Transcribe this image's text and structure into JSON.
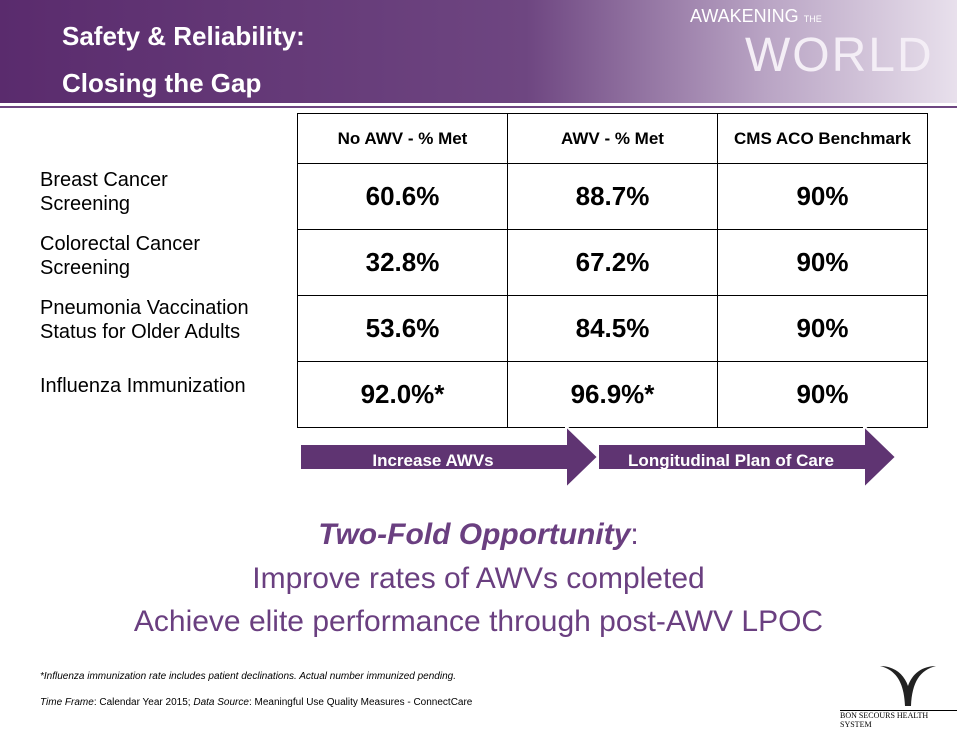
{
  "header": {
    "title": [
      "Safety & Reliability:",
      "Closing the Gap"
    ],
    "logo": {
      "line1": "AWAKENING",
      "small": "THE",
      "line2": "WORLD"
    }
  },
  "table": {
    "columns": [
      "No AWV - % Met",
      "AWV - % Met",
      "CMS ACO Benchmark"
    ],
    "rows": [
      {
        "label": [
          "Breast Cancer",
          "Screening"
        ],
        "cells": [
          "60.6%",
          "88.7%",
          "90%"
        ]
      },
      {
        "label": [
          "Colorectal Cancer",
          "Screening"
        ],
        "cells": [
          "32.8%",
          "67.2%",
          "90%"
        ]
      },
      {
        "label": [
          "Pneumonia Vaccination",
          "Status for Older Adults"
        ],
        "cells": [
          "53.6%",
          "84.5%",
          "90%"
        ]
      },
      {
        "label": [
          "Influenza Immunization"
        ],
        "cells": [
          "92.0%*",
          "96.9%*",
          "90%"
        ]
      }
    ]
  },
  "arrows": [
    "Increase AWVs",
    "Longitudinal Plan of Care"
  ],
  "opportunity": {
    "heading": "Two-Fold Opportunity",
    "colon": ":",
    "lines": [
      "Improve rates of AWVs completed",
      "Achieve elite performance through post-AWV LPOC"
    ]
  },
  "footnote": "*Influenza immunization rate includes patient declinations.  Actual number immunized pending.",
  "source": [
    "Time Frame",
    ": Calendar Year 2015; ",
    "Data Source",
    ": Meaningful Use Quality Measures - ConnectCare"
  ],
  "footer_logo": "BON SECOURS HEALTH SYSTEM"
}
